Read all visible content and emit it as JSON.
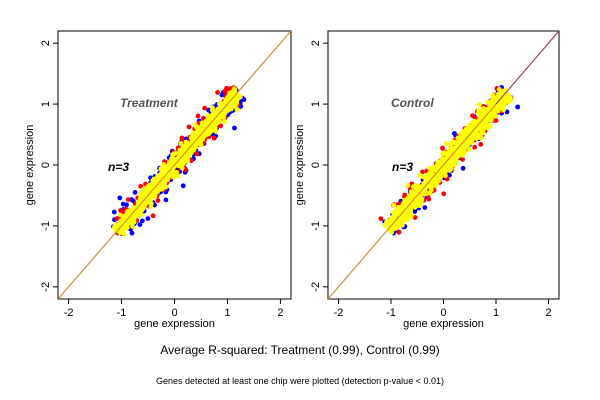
{
  "chart_data": [
    {
      "type": "scatter",
      "title": "Treatment",
      "annotation": "n=3",
      "xlabel": "gene expression",
      "ylabel": "gene expression",
      "xlim": [
        -2.2,
        2.2
      ],
      "ylim": [
        -2.2,
        2.2
      ],
      "xticks": [
        "-2",
        "-1",
        "0",
        "1",
        "2"
      ],
      "yticks": [
        "-2",
        "-1",
        "0",
        "1",
        "2"
      ],
      "x_range": [
        -1.1,
        1.2
      ],
      "diagonal": true,
      "series": [
        {
          "color": "#0000ff",
          "spread": 0.15
        },
        {
          "color": "#ff0000",
          "spread": 0.13
        },
        {
          "color": "#ffff00",
          "spread": 0.09
        }
      ]
    },
    {
      "type": "scatter",
      "title": "Control",
      "annotation": "n=3",
      "xlabel": "gene expression",
      "ylabel": "gene expression",
      "xlim": [
        -2.2,
        2.2
      ],
      "ylim": [
        -2.2,
        2.2
      ],
      "xticks": [
        "-2",
        "-1",
        "0",
        "1",
        "2"
      ],
      "yticks": [
        "-2",
        "-1",
        "0",
        "1",
        "2"
      ],
      "x_range": [
        -1.05,
        1.2
      ],
      "diagonal": true,
      "series": [
        {
          "color": "#0000ff",
          "spread": 0.13
        },
        {
          "color": "#ff0000",
          "spread": 0.14
        },
        {
          "color": "#ffff00",
          "spread": 0.1
        }
      ]
    }
  ],
  "colors": {
    "diagonal_line": "#d09030",
    "diagonal_line_control": "#9a3a8a"
  },
  "caption": {
    "main": "Average R-squared: Treatment (0.99), Control (0.99)",
    "sub": "Genes detected at least one chip were plotted (detection p-value < 0.01)"
  }
}
